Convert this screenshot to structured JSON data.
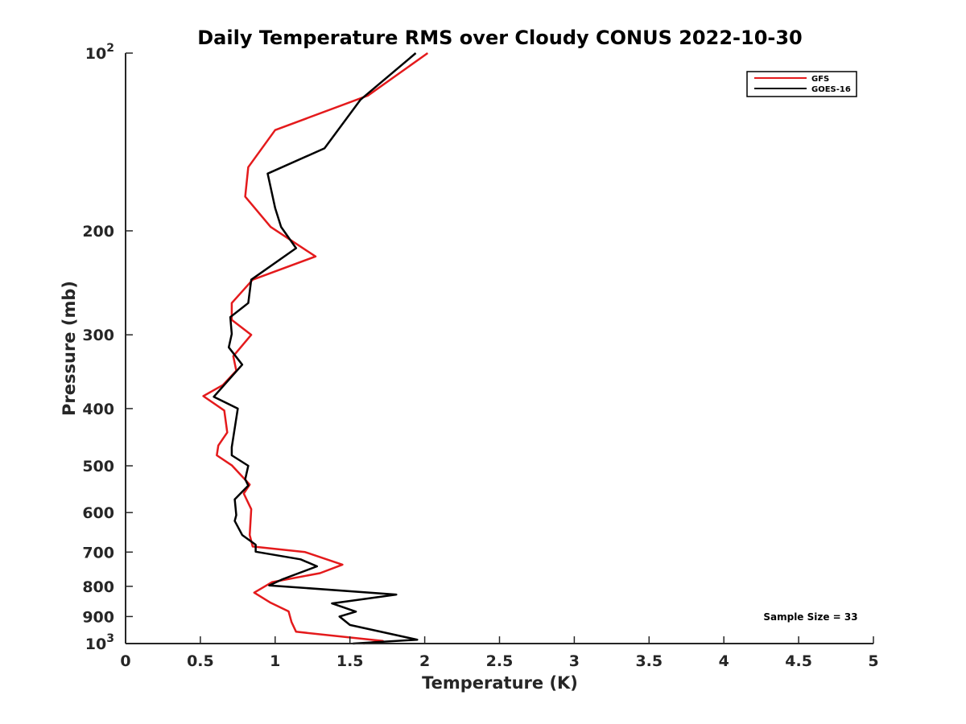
{
  "chart_data": {
    "type": "line",
    "title": "Daily Temperature RMS over Cloudy CONUS 2022-10-30",
    "xlabel": "Temperature (K)",
    "ylabel": "Pressure (mb)",
    "xlim": [
      0,
      5
    ],
    "ylim": [
      100,
      1000
    ],
    "y_scale": "log",
    "y_reversed": true,
    "grid": false,
    "legend_position": "top-right",
    "x_ticks": [
      {
        "value": 0,
        "label": "0"
      },
      {
        "value": 0.5,
        "label": "0.5"
      },
      {
        "value": 1,
        "label": "1"
      },
      {
        "value": 1.5,
        "label": "1.5"
      },
      {
        "value": 2,
        "label": "2"
      },
      {
        "value": 2.5,
        "label": "2.5"
      },
      {
        "value": 3,
        "label": "3"
      },
      {
        "value": 3.5,
        "label": "3.5"
      },
      {
        "value": 4,
        "label": "4"
      },
      {
        "value": 4.5,
        "label": "4.5"
      },
      {
        "value": 5,
        "label": "5"
      }
    ],
    "y_ticks": [
      {
        "value": 100,
        "label": "10",
        "sup": "2"
      },
      {
        "value": 200,
        "label": "200",
        "sup": ""
      },
      {
        "value": 300,
        "label": "300",
        "sup": ""
      },
      {
        "value": 400,
        "label": "400",
        "sup": ""
      },
      {
        "value": 500,
        "label": "500",
        "sup": ""
      },
      {
        "value": 600,
        "label": "600",
        "sup": ""
      },
      {
        "value": 700,
        "label": "700",
        "sup": ""
      },
      {
        "value": 800,
        "label": "800",
        "sup": ""
      },
      {
        "value": 900,
        "label": "900",
        "sup": ""
      },
      {
        "value": 1000,
        "label": "10",
        "sup": "3"
      }
    ],
    "series": [
      {
        "name": "GFS",
        "color": "#e41a1c",
        "points": [
          [
            2.02,
            100
          ],
          [
            1.62,
            118
          ],
          [
            1.0,
            135
          ],
          [
            0.82,
            156
          ],
          [
            0.8,
            175
          ],
          [
            0.97,
            197
          ],
          [
            1.27,
            221
          ],
          [
            0.85,
            242
          ],
          [
            0.71,
            265
          ],
          [
            0.71,
            283
          ],
          [
            0.84,
            300
          ],
          [
            0.72,
            326
          ],
          [
            0.74,
            345
          ],
          [
            0.65,
            365
          ],
          [
            0.52,
            381
          ],
          [
            0.66,
            403
          ],
          [
            0.68,
            439
          ],
          [
            0.62,
            462
          ],
          [
            0.61,
            480
          ],
          [
            0.71,
            499
          ],
          [
            0.83,
            538
          ],
          [
            0.79,
            557
          ],
          [
            0.84,
            592
          ],
          [
            0.83,
            655
          ],
          [
            0.85,
            685
          ],
          [
            1.2,
            700
          ],
          [
            1.45,
            735
          ],
          [
            1.3,
            760
          ],
          [
            0.98,
            787
          ],
          [
            0.86,
            820
          ],
          [
            0.97,
            853
          ],
          [
            1.09,
            882
          ],
          [
            1.11,
            920
          ],
          [
            1.14,
            955
          ],
          [
            1.72,
            990
          ],
          [
            1.59,
            1000
          ]
        ]
      },
      {
        "name": "GOES-16",
        "color": "#000000",
        "points": [
          [
            1.94,
            100
          ],
          [
            1.57,
            120
          ],
          [
            1.33,
            145
          ],
          [
            0.95,
            160
          ],
          [
            1.0,
            183
          ],
          [
            1.04,
            197
          ],
          [
            1.14,
            214
          ],
          [
            0.84,
            242
          ],
          [
            0.82,
            265
          ],
          [
            0.7,
            280
          ],
          [
            0.71,
            299
          ],
          [
            0.69,
            315
          ],
          [
            0.78,
            337
          ],
          [
            0.59,
            382
          ],
          [
            0.75,
            400
          ],
          [
            0.71,
            465
          ],
          [
            0.71,
            480
          ],
          [
            0.82,
            500
          ],
          [
            0.8,
            527
          ],
          [
            0.82,
            540
          ],
          [
            0.73,
            570
          ],
          [
            0.74,
            606
          ],
          [
            0.73,
            620
          ],
          [
            0.78,
            655
          ],
          [
            0.87,
            680
          ],
          [
            0.87,
            699
          ],
          [
            1.17,
            720
          ],
          [
            1.28,
            740
          ],
          [
            1.05,
            778
          ],
          [
            0.96,
            797
          ],
          [
            1.81,
            826
          ],
          [
            1.38,
            855
          ],
          [
            1.54,
            883
          ],
          [
            1.43,
            900
          ],
          [
            1.5,
            930
          ],
          [
            1.95,
            985
          ],
          [
            1.52,
            1000
          ]
        ]
      }
    ],
    "annotation": "Sample Size = 33"
  }
}
